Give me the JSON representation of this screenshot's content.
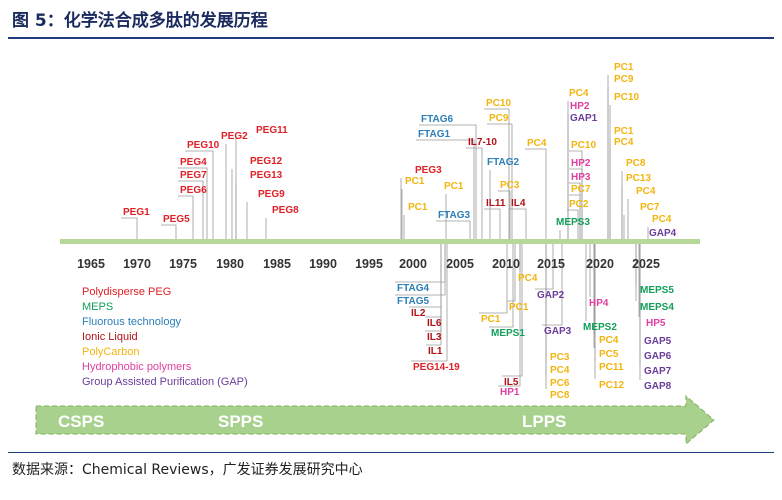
{
  "title": "图 5：化学法合成多肽的发展历程",
  "source": "数据来源：Chemical Reviews，广发证券发展研究中心",
  "colors": {
    "peg": "#e02127",
    "meps": "#12a05a",
    "fluorous": "#2c7fb8",
    "ionic": "#b01218",
    "polycarbon": "#f2b50f",
    "hydrophobic": "#e040a0",
    "gap": "#6a3d9a",
    "axis": "#b6d99a",
    "arrow": "#a9d18e"
  },
  "years": [
    "1965",
    "1970",
    "1975",
    "1980",
    "1985",
    "1990",
    "1995",
    "2000",
    "2005",
    "2010",
    "2015",
    "2020",
    "2025"
  ],
  "legend": [
    {
      "text": "Polydisperse PEG",
      "cat": "peg"
    },
    {
      "text": "MEPS",
      "cat": "meps"
    },
    {
      "text": "Fluorous technology",
      "cat": "fluorous"
    },
    {
      "text": "Ionic Liquid",
      "cat": "ionic"
    },
    {
      "text": "PolyCarbon",
      "cat": "polycarbon"
    },
    {
      "text": "Hydrophobic polymers",
      "cat": "hydrophobic"
    },
    {
      "text": "Group Assisted Purification (GAP)",
      "cat": "gap"
    }
  ],
  "eras": [
    "CSPS",
    "SPPS",
    "LPPS"
  ],
  "labels": [
    {
      "t": "PEG1",
      "c": "peg"
    },
    {
      "t": "PEG5",
      "c": "peg"
    },
    {
      "t": "PEG6",
      "c": "peg"
    },
    {
      "t": "PEG7",
      "c": "peg"
    },
    {
      "t": "PEG4",
      "c": "peg"
    },
    {
      "t": "PEG10",
      "c": "peg"
    },
    {
      "t": "PEG2",
      "c": "peg"
    },
    {
      "t": "PEG11",
      "c": "peg"
    },
    {
      "t": "PEG12",
      "c": "peg"
    },
    {
      "t": "PEG13",
      "c": "peg"
    },
    {
      "t": "PEG9",
      "c": "peg"
    },
    {
      "t": "PEG8",
      "c": "peg"
    },
    {
      "t": "PEG3",
      "c": "peg"
    },
    {
      "t": "PC1",
      "c": "polycarbon"
    },
    {
      "t": "PC1",
      "c": "polycarbon"
    },
    {
      "t": "PC1",
      "c": "polycarbon"
    },
    {
      "t": "FTAG6",
      "c": "fluorous"
    },
    {
      "t": "FTAG1",
      "c": "fluorous"
    },
    {
      "t": "FTAG3",
      "c": "fluorous"
    },
    {
      "t": "FTAG2",
      "c": "fluorous"
    },
    {
      "t": "IL7-10",
      "c": "ionic"
    },
    {
      "t": "PC10",
      "c": "polycarbon"
    },
    {
      "t": "PC9",
      "c": "polycarbon"
    },
    {
      "t": "PC3",
      "c": "polycarbon"
    },
    {
      "t": "IL11",
      "c": "ionic"
    },
    {
      "t": "IL4",
      "c": "ionic"
    },
    {
      "t": "PC4",
      "c": "polycarbon"
    },
    {
      "t": "PC4",
      "c": "polycarbon"
    },
    {
      "t": "HP2",
      "c": "hydrophobic"
    },
    {
      "t": "GAP1",
      "c": "gap"
    },
    {
      "t": "PC10",
      "c": "polycarbon"
    },
    {
      "t": "HP2",
      "c": "hydrophobic"
    },
    {
      "t": "HP3",
      "c": "hydrophobic"
    },
    {
      "t": "PC7",
      "c": "polycarbon"
    },
    {
      "t": "PC2",
      "c": "polycarbon"
    },
    {
      "t": "MEPS3",
      "c": "meps"
    },
    {
      "t": "PC1",
      "c": "polycarbon"
    },
    {
      "t": "PC9",
      "c": "polycarbon"
    },
    {
      "t": "PC10",
      "c": "polycarbon"
    },
    {
      "t": "PC1",
      "c": "polycarbon"
    },
    {
      "t": "PC4",
      "c": "polycarbon"
    },
    {
      "t": "PC8",
      "c": "polycarbon"
    },
    {
      "t": "PC13",
      "c": "polycarbon"
    },
    {
      "t": "PC4",
      "c": "polycarbon"
    },
    {
      "t": "PC7",
      "c": "polycarbon"
    },
    {
      "t": "PC4",
      "c": "polycarbon"
    },
    {
      "t": "GAP4",
      "c": "gap"
    },
    {
      "t": "FTAG4",
      "c": "fluorous"
    },
    {
      "t": "FTAG5",
      "c": "fluorous"
    },
    {
      "t": "IL2",
      "c": "ionic"
    },
    {
      "t": "IL6",
      "c": "ionic"
    },
    {
      "t": "IL3",
      "c": "ionic"
    },
    {
      "t": "IL1",
      "c": "ionic"
    },
    {
      "t": "PEG14-19",
      "c": "peg"
    },
    {
      "t": "PC4",
      "c": "polycarbon"
    },
    {
      "t": "PC1",
      "c": "polycarbon"
    },
    {
      "t": "PC1",
      "c": "polycarbon"
    },
    {
      "t": "MEPS1",
      "c": "meps"
    },
    {
      "t": "IL5",
      "c": "ionic"
    },
    {
      "t": "HP1",
      "c": "hydrophobic"
    },
    {
      "t": "GAP2",
      "c": "gap"
    },
    {
      "t": "GAP3",
      "c": "gap"
    },
    {
      "t": "PC3",
      "c": "polycarbon"
    },
    {
      "t": "PC4",
      "c": "polycarbon"
    },
    {
      "t": "PC6",
      "c": "polycarbon"
    },
    {
      "t": "PC8",
      "c": "polycarbon"
    },
    {
      "t": "HP4",
      "c": "hydrophobic"
    },
    {
      "t": "MEPS2",
      "c": "meps"
    },
    {
      "t": "PC4",
      "c": "polycarbon"
    },
    {
      "t": "PC5",
      "c": "polycarbon"
    },
    {
      "t": "PC11",
      "c": "polycarbon"
    },
    {
      "t": "PC12",
      "c": "polycarbon"
    },
    {
      "t": "MEPS5",
      "c": "meps"
    },
    {
      "t": "MEPS4",
      "c": "meps"
    },
    {
      "t": "HP5",
      "c": "hydrophobic"
    },
    {
      "t": "GAP5",
      "c": "gap"
    },
    {
      "t": "GAP6",
      "c": "gap"
    },
    {
      "t": "GAP7",
      "c": "gap"
    },
    {
      "t": "GAP8",
      "c": "gap"
    }
  ]
}
